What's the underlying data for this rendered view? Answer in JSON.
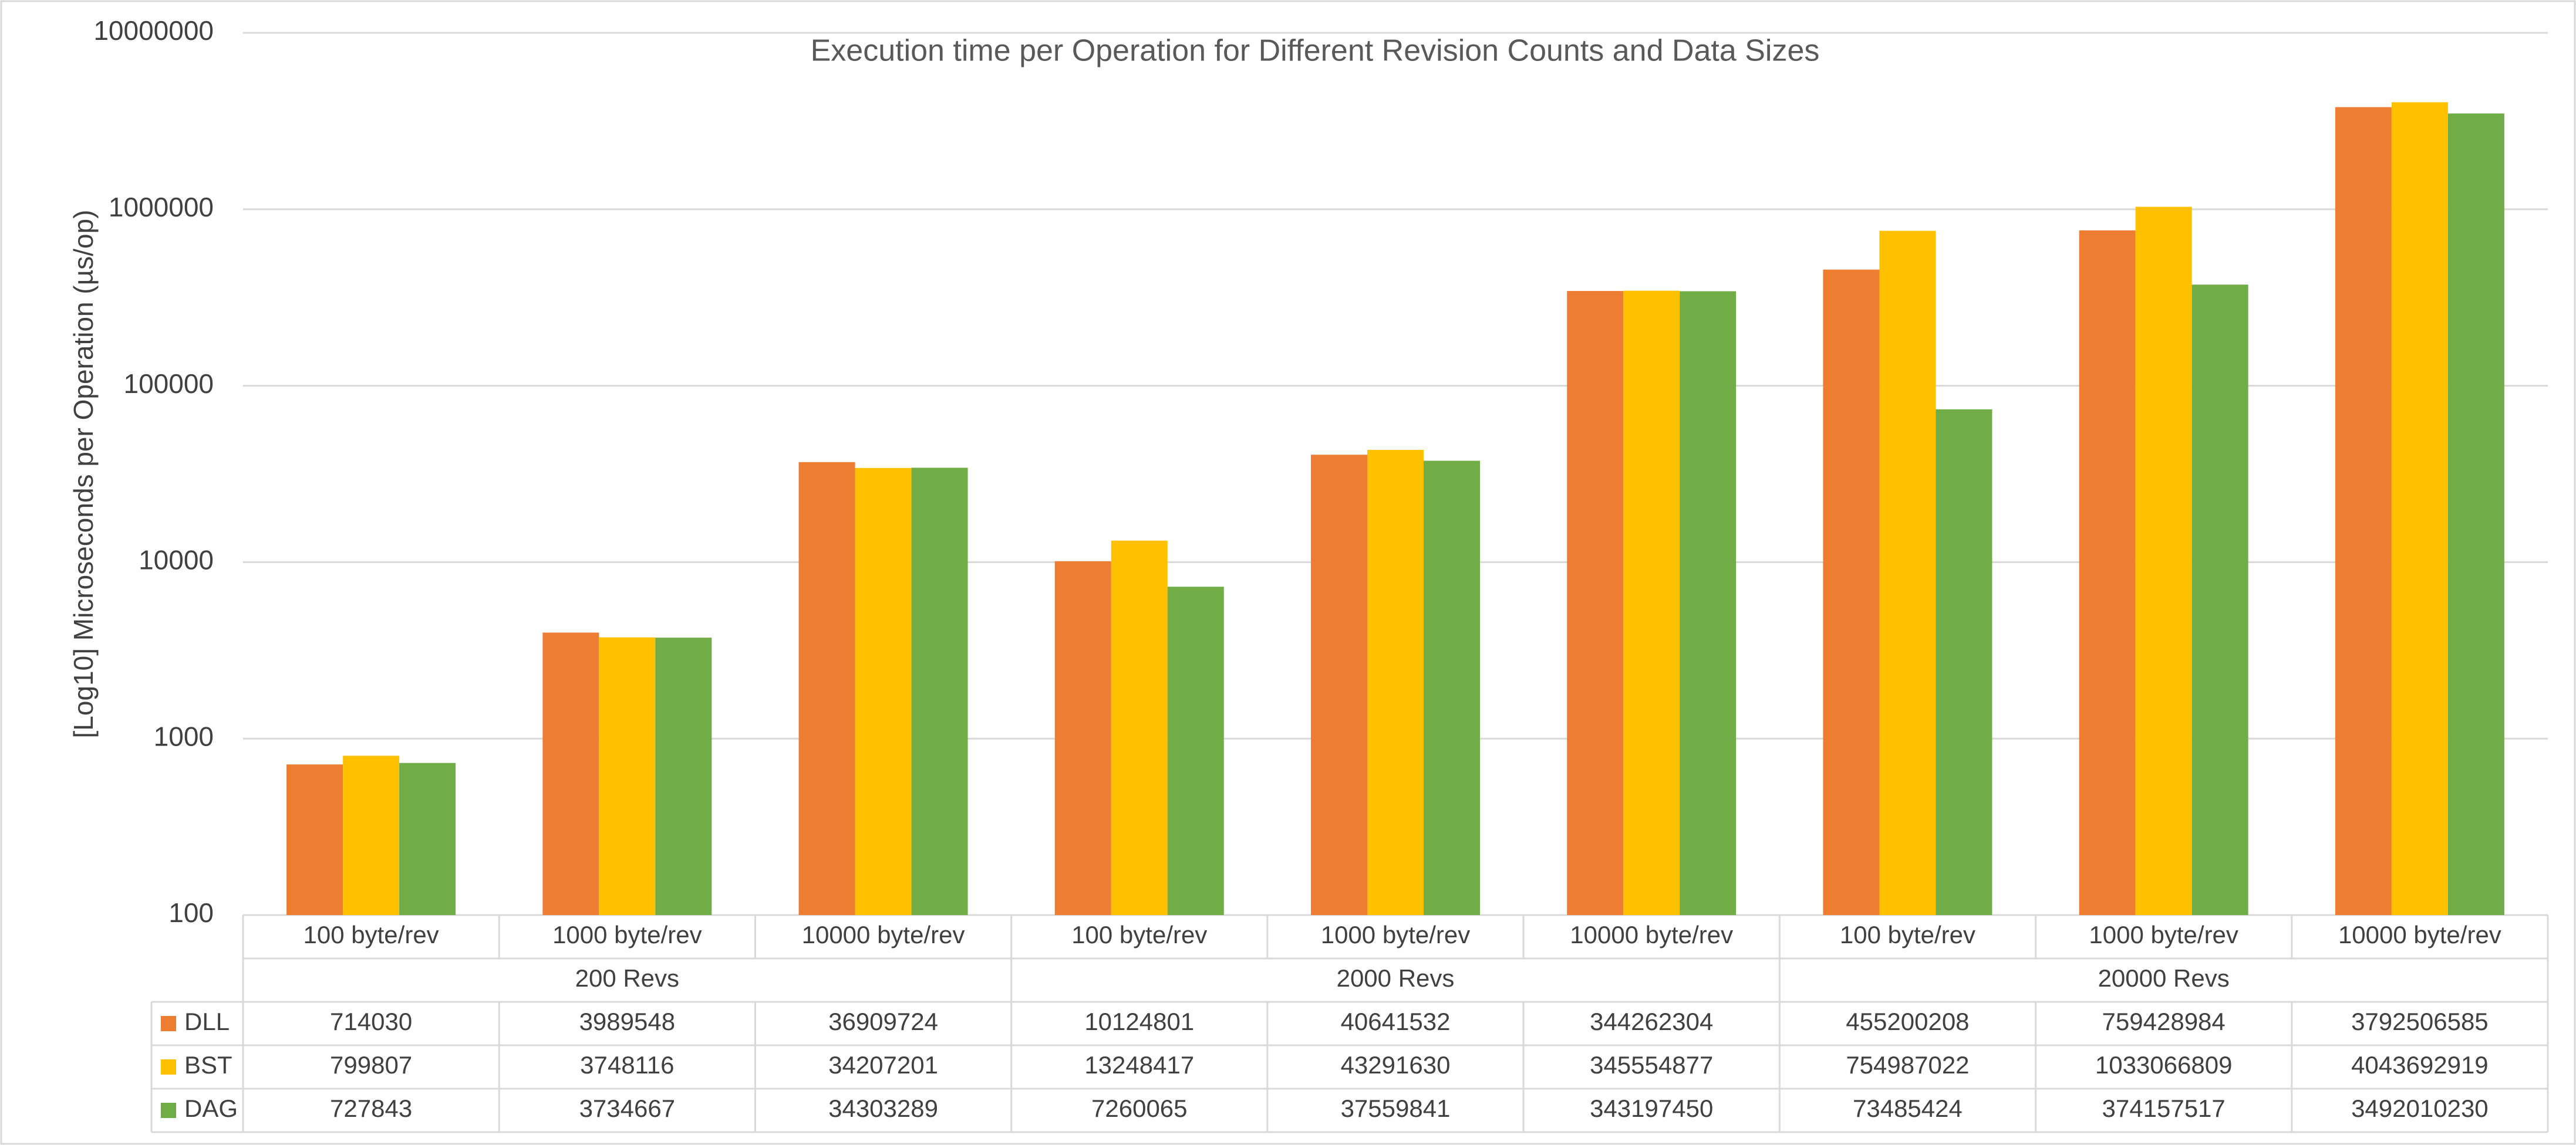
{
  "chart_data": {
    "type": "bar",
    "title": "Execution time per Operation for Different Revision Counts and Data Sizes",
    "y_label": "[Log10] Microseconds per Operation (µs/op)",
    "categories": [
      "100 byte/rev",
      "1000 byte/rev",
      "10000 byte/rev",
      "100 byte/rev",
      "1000 byte/rev",
      "10000 byte/rev",
      "100 byte/rev",
      "1000 byte/rev",
      "10000 byte/rev"
    ],
    "category_groups": [
      "200 Revs",
      "2000 Revs",
      "20000 Revs"
    ],
    "series": [
      {
        "name": "DLL",
        "color": "#ed7d31",
        "values": [
          714.03,
          3989.548,
          36909.724,
          10124.801,
          40641.532,
          344262.304,
          455200.208,
          759428.984,
          3792506.585
        ],
        "value_labels": [
          "714030",
          "3989548",
          "36909724",
          "10124801",
          "40641532",
          "344262304",
          "455200208",
          "759428984",
          "3792506585"
        ]
      },
      {
        "name": "BST",
        "color": "#ffc000",
        "values": [
          799.807,
          3748.116,
          34207.201,
          13248.417,
          43291.63,
          345554.877,
          754987.022,
          1033066.809,
          4043692.919
        ],
        "value_labels": [
          "799807",
          "3748116",
          "34207201",
          "13248417",
          "43291630",
          "345554877",
          "754987022",
          "1033066809",
          "4043692919"
        ]
      },
      {
        "name": "DAG",
        "color": "#70ad47",
        "values": [
          727.843,
          3734.667,
          34303.289,
          7260.065,
          37559.841,
          343197.45,
          73485.424,
          374157.517,
          3492010.23
        ],
        "value_labels": [
          "727843",
          "3734667",
          "34303289",
          "7260065",
          "37559841",
          "343197450",
          "73485424",
          "374157517",
          "3492010230"
        ]
      }
    ],
    "log_scale": true,
    "ylim": [
      100,
      10000000
    ],
    "yticks": [
      100,
      1000,
      10000,
      100000,
      1000000,
      10000000
    ],
    "grid": true
  }
}
